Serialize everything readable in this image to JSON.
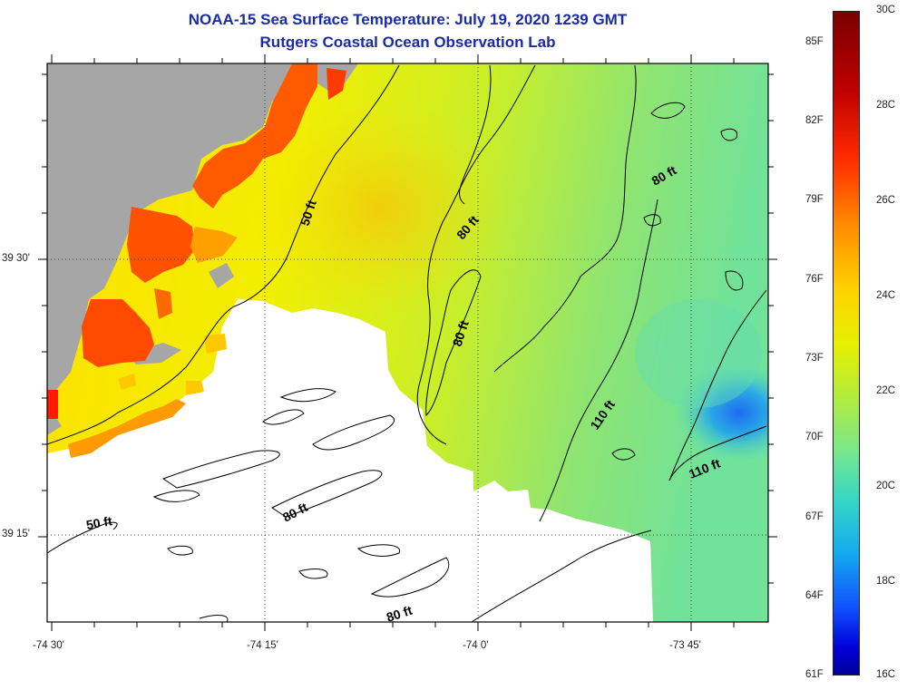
{
  "title": {
    "line1": "NOAA-15 Sea Surface Temperature:  July 19, 2020 1239 GMT",
    "line2": "Rutgers Coastal Ocean Observation Lab"
  },
  "map": {
    "latitude_labels": [
      "39 30'",
      "39 15'"
    ],
    "longitude_labels": [
      "-74 30'",
      "-74 15'",
      "-74 0'",
      "-73 45'"
    ],
    "contour_labels": [
      "50 ft",
      "80 ft",
      "80 ft",
      "80 ft",
      "110 ft",
      "110 ft",
      "50 ft",
      "80 ft",
      "80 ft"
    ],
    "colors": {
      "land": "#a6a6a6",
      "no_data": "#ffffff",
      "contour": "#000000"
    }
  },
  "colorbar": {
    "celsius_labels": [
      "30C",
      "28C",
      "26C",
      "24C",
      "22C",
      "20C",
      "18C",
      "16C"
    ],
    "fahrenheit_labels": [
      "85F",
      "82F",
      "79F",
      "76F",
      "73F",
      "70F",
      "67F",
      "64F",
      "61F"
    ]
  }
}
